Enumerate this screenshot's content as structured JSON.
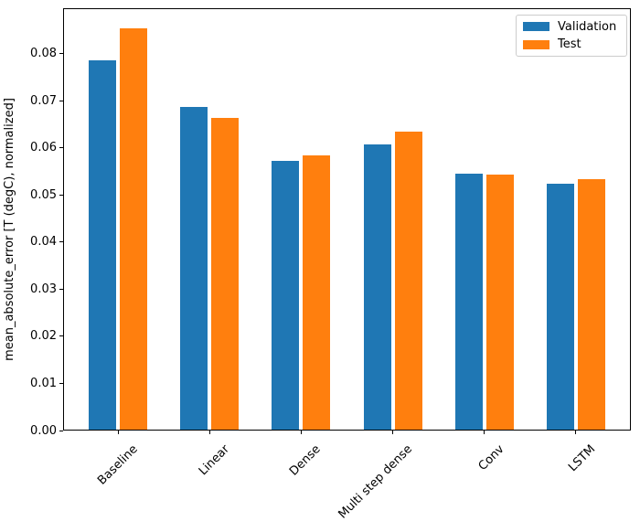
{
  "chart_data": {
    "type": "bar",
    "title": "",
    "categories": [
      "Baseline",
      "Linear",
      "Dense",
      "Multi step dense",
      "Conv",
      "LSTM"
    ],
    "series": [
      {
        "name": "Validation",
        "color": "#1f77b4",
        "values": [
          0.0785,
          0.0687,
          0.0572,
          0.0607,
          0.0545,
          0.0524
        ]
      },
      {
        "name": "Test",
        "color": "#ff7f0e",
        "values": [
          0.0853,
          0.0664,
          0.0584,
          0.0634,
          0.0543,
          0.0534
        ]
      }
    ],
    "xlabel": "",
    "ylabel": "mean_absolute_error [T (degC), normalized]",
    "ylim": [
      0,
      0.0896
    ],
    "yticks": [
      0,
      0.01,
      0.02,
      0.03,
      0.04,
      0.05,
      0.06,
      0.07,
      0.08
    ],
    "ytick_decimals": 2,
    "x_tick_rotation_deg": 45,
    "grid": false,
    "legend_position": "upper right",
    "axis_color": "#000000",
    "bar_width_units": 0.3,
    "bar_group_offset_units": 0.17
  }
}
